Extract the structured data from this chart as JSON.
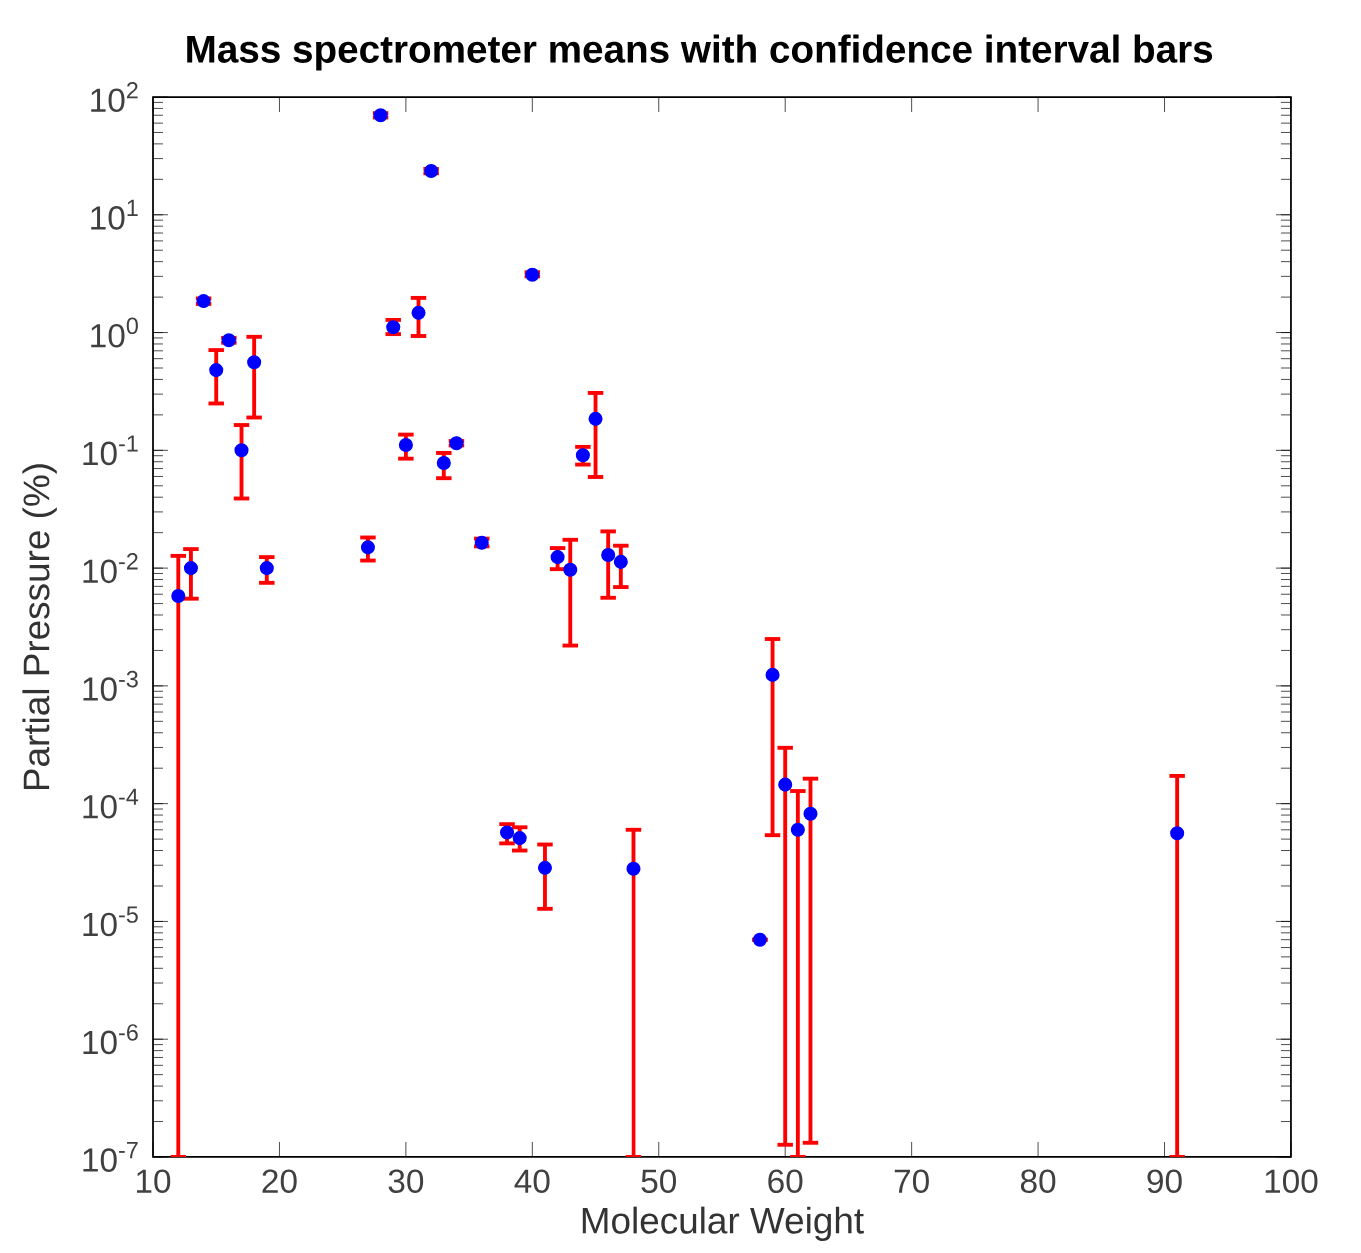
{
  "chart_data": {
    "type": "scatter",
    "title": "Mass spectrometer means with confidence interval bars",
    "xlabel": "Molecular Weight",
    "ylabel": "Partial Pressure (%)",
    "log": "y",
    "marker": "circle",
    "xlim": [
      10,
      100
    ],
    "xticks": [
      10,
      20,
      30,
      40,
      50,
      60,
      70,
      80,
      90,
      100
    ],
    "ylim": [
      1e-07,
      100
    ],
    "yticks": [
      {
        "value": 1e-07,
        "label": "10$^{-7}$"
      },
      {
        "value": 1e-06,
        "label": "10$^{-6}$"
      },
      {
        "value": 1e-05,
        "label": "10$^{-5}$"
      },
      {
        "value": 0.0001,
        "label": "10$^{-4}$"
      },
      {
        "value": 0.001,
        "label": "10$^{-3}$"
      },
      {
        "value": 0.01,
        "label": "10$^{-2}$"
      },
      {
        "value": 0.1,
        "label": "10$^{-1}$"
      },
      {
        "value": 1,
        "label": "10$^{0}$"
      },
      {
        "value": 10,
        "label": "10$^{1}$"
      },
      {
        "value": 100,
        "label": "10$^{2}$"
      }
    ],
    "series": [
      {
        "color": "#0000ff",
        "x": [
          12,
          13,
          14,
          15,
          16,
          17,
          18,
          19,
          27,
          28,
          29,
          30,
          31,
          32,
          33,
          34,
          36,
          38,
          39,
          40,
          41,
          42,
          43,
          44,
          45,
          46,
          47,
          48,
          58,
          59,
          60,
          61,
          62,
          91
        ],
        "values": [
          0.0058,
          0.01,
          1.85,
          0.48,
          0.86,
          0.1,
          0.56,
          0.01,
          0.015,
          70,
          1.11,
          0.111,
          1.47,
          23.5,
          0.078,
          0.115,
          0.0164,
          5.7e-05,
          5.1e-05,
          3.1,
          2.85e-05,
          0.0124,
          0.0097,
          0.091,
          0.185,
          0.0129,
          0.0113,
          2.8e-05,
          7e-06,
          0.00124,
          0.000145,
          6e-05,
          8.2e-05,
          5.6e-05
        ],
        "errors": [
          [
            1e-07,
            0.0127
          ],
          [
            0.0055,
            0.0145
          ],
          [
            1.75,
            1.95
          ],
          [
            0.25,
            0.71
          ],
          [
            0.82,
            0.9
          ],
          [
            0.039,
            0.164
          ],
          [
            0.19,
            0.92
          ],
          [
            0.0075,
            0.0124
          ],
          [
            0.0116,
            0.0182
          ],
          [
            67,
            73
          ],
          [
            0.97,
            1.28
          ],
          [
            0.085,
            0.136
          ],
          [
            0.935,
            1.97
          ],
          [
            22.5,
            24.5
          ],
          [
            0.058,
            0.095
          ],
          [
            0.11,
            0.12
          ],
          [
            0.0153,
            0.0178
          ],
          [
            4.6e-05,
            6.7e-05
          ],
          [
            4e-05,
            6.3e-05
          ],
          [
            3,
            3.25
          ],
          [
            1.28e-05,
            4.5e-05
          ],
          [
            0.0098,
            0.0148
          ],
          [
            0.0022,
            0.0174
          ],
          [
            0.0757,
            0.107
          ],
          [
            0.0594,
            0.307
          ],
          [
            0.0056,
            0.0205
          ],
          [
            0.0069,
            0.0155
          ],
          [
            1e-07,
            6e-05
          ],
          null,
          [
            5.4e-05,
            0.0025
          ],
          [
            1.27e-07,
            0.000298
          ],
          [
            1e-07,
            0.000128
          ],
          [
            1.32e-07,
            0.000163
          ],
          [
            1e-07,
            0.000172
          ]
        ]
      }
    ]
  }
}
